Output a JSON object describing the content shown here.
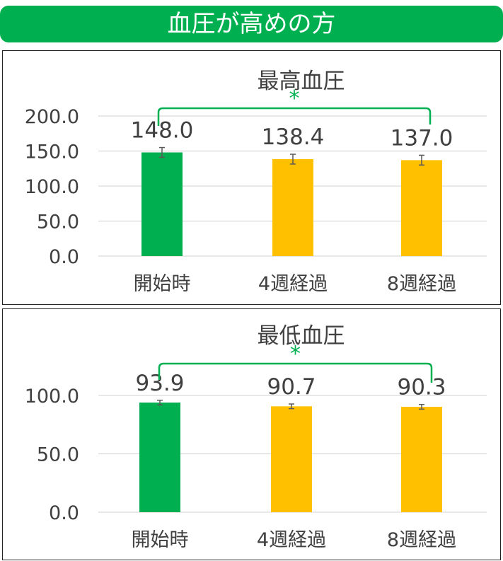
{
  "header": {
    "title": "血圧が高めの方"
  },
  "colors": {
    "baseline": "#00b050",
    "followup": "#ffc000",
    "accent": "#00b050",
    "error_bar": "#595959"
  },
  "chart_data": [
    {
      "type": "bar",
      "title": "最高血圧",
      "categories": [
        "開始時",
        "4週経過",
        "8週経過"
      ],
      "values": [
        148.0,
        138.4,
        137.0
      ],
      "value_labels": [
        "148.0",
        "138.4",
        "137.0"
      ],
      "error": [
        7,
        7,
        7
      ],
      "ylim": [
        0,
        200
      ],
      "yticks": [
        0,
        50,
        100,
        150,
        200
      ],
      "ytick_labels": [
        "0.0",
        "50.0",
        "100.0",
        "150.0",
        "200.0"
      ],
      "grid": true,
      "significance": {
        "from": "開始時",
        "to": "8週経過",
        "marker": "*"
      }
    },
    {
      "type": "bar",
      "title": "最低血圧",
      "categories": [
        "開始時",
        "4週経過",
        "8週経過"
      ],
      "values": [
        93.9,
        90.7,
        90.3
      ],
      "value_labels": [
        "93.9",
        "90.7",
        "90.3"
      ],
      "error": [
        2,
        2,
        2
      ],
      "ylim": [
        0,
        100
      ],
      "yticks": [
        0,
        50,
        100
      ],
      "ytick_labels": [
        "0.0",
        "50.0",
        "100.0"
      ],
      "grid": true,
      "significance": {
        "from": "開始時",
        "to": "8週経過",
        "marker": "*"
      }
    }
  ]
}
